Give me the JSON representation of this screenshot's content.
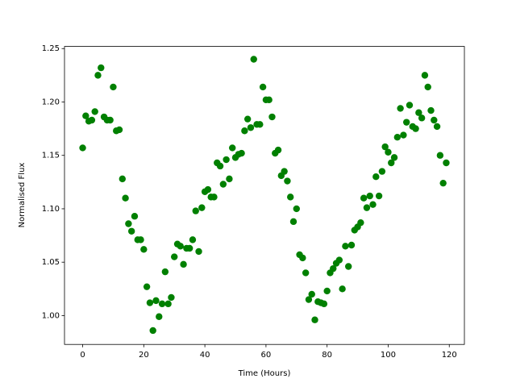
{
  "chart_data": {
    "type": "scatter",
    "xlabel": "Time (Hours)",
    "ylabel": "Normalised Flux",
    "color": "#008000",
    "x": [
      0,
      1,
      2,
      3,
      4,
      5,
      6,
      7,
      8,
      9,
      10,
      11,
      12,
      13,
      14,
      15,
      16,
      17,
      18,
      19,
      20,
      21,
      22,
      23,
      24,
      25,
      26,
      27,
      28,
      29,
      30,
      31,
      32,
      33,
      34,
      35,
      36,
      37,
      38,
      39,
      40,
      41,
      42,
      43,
      44,
      45,
      46,
      47,
      48,
      49,
      50,
      51,
      52,
      53,
      54,
      55,
      56,
      57,
      58,
      59,
      60,
      61,
      62,
      63,
      64,
      65,
      66,
      67,
      68,
      69,
      70,
      71,
      72,
      73,
      74,
      75,
      76,
      77,
      78,
      79,
      80,
      81,
      82,
      83,
      84,
      85,
      86,
      87,
      88,
      89,
      90,
      91,
      92,
      93,
      94,
      95,
      96,
      97,
      98,
      99,
      100,
      101,
      102,
      103,
      104,
      105,
      106,
      107,
      108,
      109,
      110,
      111,
      112,
      113,
      114,
      115,
      116,
      117,
      118,
      119
    ],
    "y": [
      1.157,
      1.187,
      1.182,
      1.183,
      1.191,
      1.225,
      1.232,
      1.186,
      1.183,
      1.183,
      1.214,
      1.173,
      1.174,
      1.128,
      1.11,
      1.086,
      1.079,
      1.093,
      1.071,
      1.071,
      1.062,
      1.027,
      1.012,
      0.986,
      1.014,
      0.999,
      1.011,
      1.041,
      1.011,
      1.017,
      1.055,
      1.067,
      1.065,
      1.048,
      1.063,
      1.063,
      1.071,
      1.098,
      1.06,
      1.101,
      1.116,
      1.118,
      1.111,
      1.111,
      1.143,
      1.14,
      1.123,
      1.146,
      1.128,
      1.157,
      1.148,
      1.151,
      1.152,
      1.173,
      1.184,
      1.176,
      1.24,
      1.179,
      1.179,
      1.214,
      1.202,
      1.202,
      1.186,
      1.152,
      1.155,
      1.131,
      1.135,
      1.126,
      1.111,
      1.088,
      1.1,
      1.057,
      1.054,
      1.04,
      1.015,
      1.02,
      0.996,
      1.013,
      1.012,
      1.011,
      1.023,
      1.04,
      1.044,
      1.049,
      1.052,
      1.025,
      1.065,
      1.046,
      1.066,
      1.08,
      1.083,
      1.087,
      1.11,
      1.101,
      1.112,
      1.104,
      1.13,
      1.112,
      1.135,
      1.158,
      1.153,
      1.143,
      1.148,
      1.167,
      1.194,
      1.169,
      1.181,
      1.197,
      1.177,
      1.175,
      1.19,
      1.185,
      1.225,
      1.214,
      1.192,
      1.183,
      1.177,
      1.15,
      1.124,
      1.143
    ],
    "xlim": [
      -5.95,
      124.95
    ],
    "ylim": [
      0.973,
      1.252
    ],
    "xticks": [
      0,
      20,
      40,
      60,
      80,
      100,
      120
    ],
    "yticks": [
      {
        "value": 1.0,
        "label": "1.00"
      },
      1.05,
      {
        "value": 1.1,
        "label": "1.10"
      },
      1.15,
      {
        "value": 1.2,
        "label": "1.20"
      },
      1.25
    ]
  }
}
